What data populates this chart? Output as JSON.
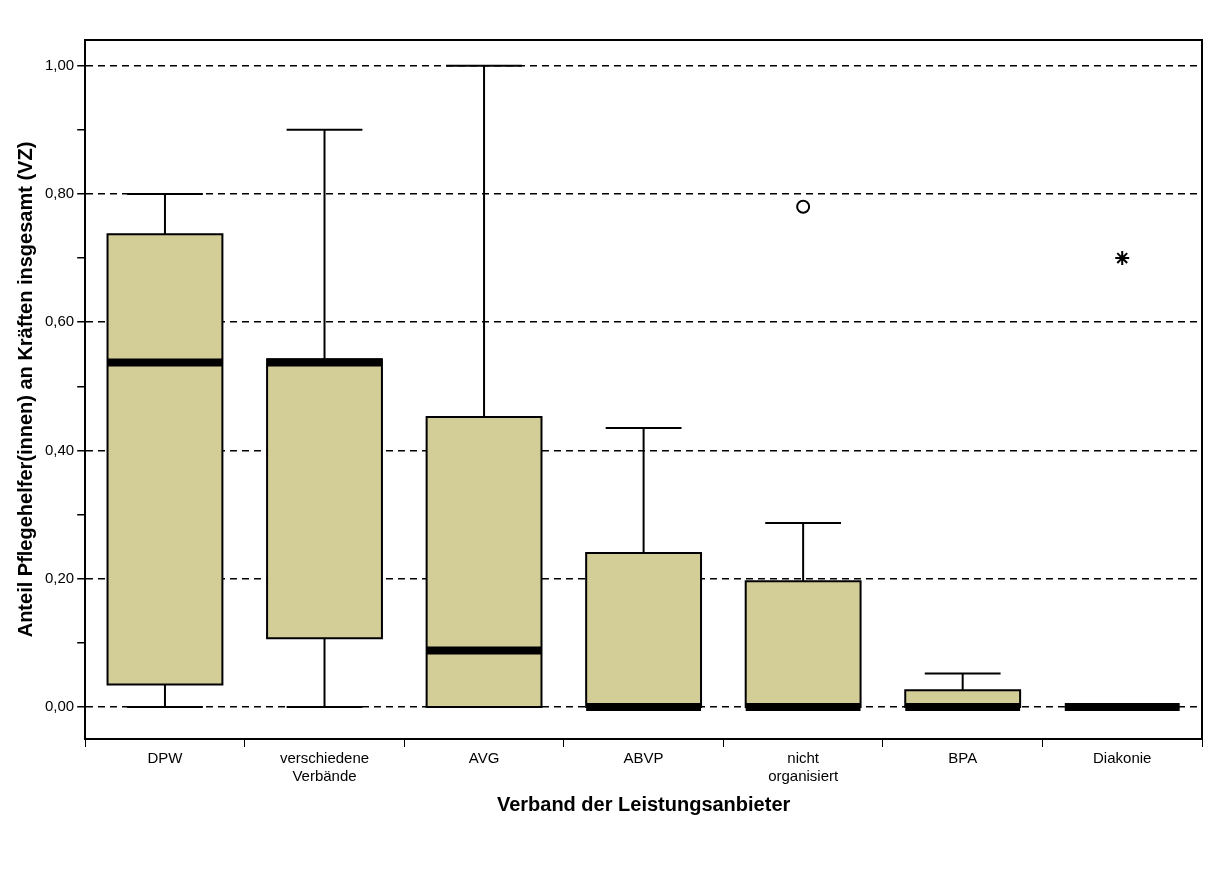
{
  "chart_data": {
    "type": "box",
    "xlabel": "Verband der Leistungsanbieter",
    "ylabel": "Anteil Pflegehelfer(innen) an Kräften insgesamt (VZ)",
    "categories": [
      "DPW",
      "verschiedene Verbände",
      "AVG",
      "ABVP",
      "nicht organisiert",
      "BPA",
      "Diakonie"
    ],
    "ylim": [
      -0.05,
      1.04
    ],
    "yticks": [
      {
        "value": 0,
        "label": "0,00"
      },
      {
        "value": 0.1,
        "label": null
      },
      {
        "value": 0.2,
        "label": "0,20"
      },
      {
        "value": 0.3,
        "label": null
      },
      {
        "value": 0.4,
        "label": "0,40"
      },
      {
        "value": 0.5,
        "label": null
      },
      {
        "value": 0.6,
        "label": "0,60"
      },
      {
        "value": 0.7,
        "label": null
      },
      {
        "value": 0.8,
        "label": "0,80"
      },
      {
        "value": 0.9,
        "label": null
      },
      {
        "value": 1,
        "label": "1,00"
      }
    ],
    "grid": "y",
    "legend": false,
    "series": [
      {
        "color": "#d3cd98",
        "boxes": [
          {
            "low": 0,
            "q1": 0.035,
            "median": 0.537,
            "q3": 0.737,
            "high": 0.8
          },
          {
            "low": 0,
            "q1": 0.107,
            "median": 0.537,
            "q3": 0.542,
            "high": 0.9
          },
          {
            "low": 0,
            "q1": 0,
            "median": 0.088,
            "q3": 0.452,
            "high": 1.0
          },
          {
            "low": 0,
            "q1": 0,
            "median": 0,
            "q3": 0.24,
            "high": 0.435
          },
          {
            "low": 0,
            "q1": 0,
            "median": 0,
            "q3": 0.196,
            "high": 0.287,
            "outliers": [
              0.78
            ]
          },
          {
            "low": 0,
            "q1": 0,
            "median": 0,
            "q3": 0.026,
            "high": 0.052
          },
          {
            "low": 0,
            "q1": 0,
            "median": 0,
            "q3": 0,
            "high": 0
          }
        ]
      },
      {
        "type": "scatter",
        "x": [
          "Diakonie"
        ],
        "values": [
          0.7
        ],
        "marker": "cross",
        "color": "#000000"
      }
    ]
  }
}
